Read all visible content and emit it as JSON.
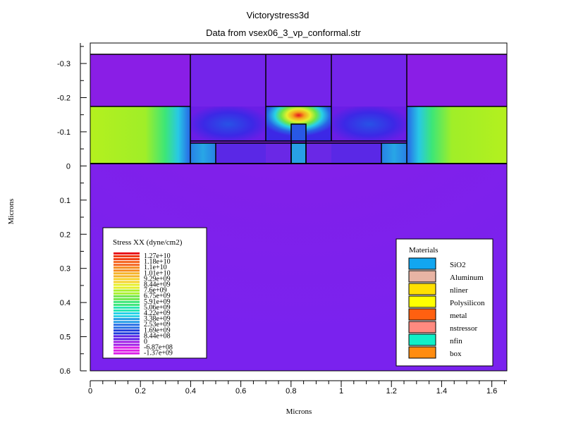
{
  "chart_data": {
    "type": "heatmap",
    "title": "Victorystress3d",
    "subtitle": "Data from vsex06_3_vp_conformal.str",
    "xlabel": "Microns",
    "ylabel": "Microns",
    "xlim": [
      0,
      1.66
    ],
    "ylim": [
      -0.36,
      0.6
    ],
    "x_ticks": [
      0,
      0.2,
      0.4,
      0.6,
      0.8,
      1,
      1.2,
      1.4,
      1.6
    ],
    "x_tick_labels": [
      "0",
      "0.2",
      "0.4",
      "0.6",
      "0.8",
      "1",
      "1.2",
      "1.4",
      "1.6"
    ],
    "y_ticks": [
      -0.3,
      -0.2,
      -0.1,
      0,
      0.1,
      0.2,
      0.3,
      0.4,
      0.5,
      0.6
    ],
    "y_tick_labels": [
      "-0.3",
      "-0.2",
      "-0.1",
      "0",
      "0.1",
      "0.2",
      "0.3",
      "0.4",
      "0.5",
      "0.6"
    ],
    "colorbar": {
      "title": "Stress XX (dyne/cm2)",
      "labels": [
        "1.27e+10",
        "1.18e+10",
        "1.1e+10",
        "1.01e+10",
        "9.29e+09",
        "8.44e+09",
        "7.6e+09",
        "6.75e+09",
        "5.91e+09",
        "5.06e+09",
        "4.22e+09",
        "3.38e+09",
        "2.53e+09",
        "1.69e+09",
        "8.44e+08",
        "0",
        "-6.87e+08",
        "-1.37e+09"
      ],
      "colors": [
        "#e8141e",
        "#f03c14",
        "#f5641e",
        "#f58c1e",
        "#f5b428",
        "#f5d22d",
        "#e6f02d",
        "#aaf02d",
        "#6ee646",
        "#3ce678",
        "#28e6b4",
        "#28d2e6",
        "#289ee6",
        "#286ee6",
        "#1e3cdc",
        "#5a1ee6",
        "#a01ee6",
        "#dc1ee6"
      ]
    },
    "materials": {
      "title": "Materials",
      "items": [
        {
          "name": "SiO2",
          "color": "#12a6f0"
        },
        {
          "name": "Aluminum",
          "color": "#e8b4a4"
        },
        {
          "name": "nliner",
          "color": "#ffe000"
        },
        {
          "name": "Polysilicon",
          "color": "#ffff00"
        },
        {
          "name": "metal",
          "color": "#ff6010"
        },
        {
          "name": "nstressor",
          "color": "#ff8a80"
        },
        {
          "name": "nfin",
          "color": "#10f0c8"
        },
        {
          "name": "box",
          "color": "#ff8c10"
        }
      ]
    }
  }
}
